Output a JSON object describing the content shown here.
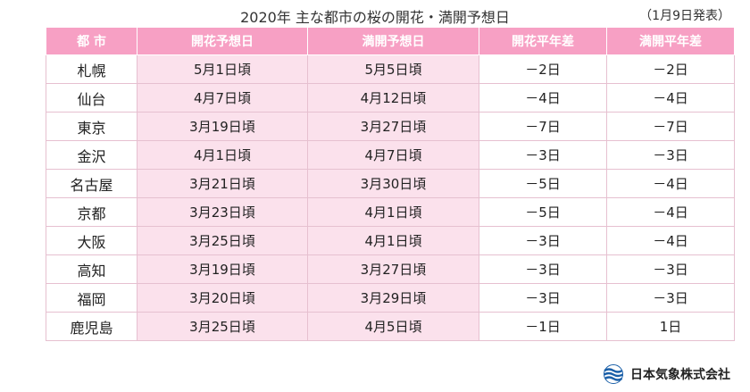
{
  "header": {
    "title": "2020年 主な都市の桜の開花・満開予想日",
    "announcement": "（1月9日発表）"
  },
  "table": {
    "columns": [
      "都 市",
      "開花予想日",
      "満開予想日",
      "開花平年差",
      "満開平年差"
    ],
    "rows": [
      {
        "city": "札幌",
        "bloom": "5月1日頃",
        "full": "5月5日頃",
        "bloom_diff": "－2日",
        "full_diff": "－2日"
      },
      {
        "city": "仙台",
        "bloom": "4月7日頃",
        "full": "4月12日頃",
        "bloom_diff": "－4日",
        "full_diff": "－4日"
      },
      {
        "city": "東京",
        "bloom": "3月19日頃",
        "full": "3月27日頃",
        "bloom_diff": "－7日",
        "full_diff": "－7日"
      },
      {
        "city": "金沢",
        "bloom": "4月1日頃",
        "full": "4月7日頃",
        "bloom_diff": "－3日",
        "full_diff": "－3日"
      },
      {
        "city": "名古屋",
        "bloom": "3月21日頃",
        "full": "3月30日頃",
        "bloom_diff": "－5日",
        "full_diff": "－4日"
      },
      {
        "city": "京都",
        "bloom": "3月23日頃",
        "full": "4月1日頃",
        "bloom_diff": "－5日",
        "full_diff": "－4日"
      },
      {
        "city": "大阪",
        "bloom": "3月25日頃",
        "full": "4月1日頃",
        "bloom_diff": "－3日",
        "full_diff": "－4日"
      },
      {
        "city": "高知",
        "bloom": "3月19日頃",
        "full": "3月27日頃",
        "bloom_diff": "－3日",
        "full_diff": "－3日"
      },
      {
        "city": "福岡",
        "bloom": "3月20日頃",
        "full": "3月29日頃",
        "bloom_diff": "－3日",
        "full_diff": "－3日"
      },
      {
        "city": "鹿児島",
        "bloom": "3月25日頃",
        "full": "4月5日頃",
        "bloom_diff": "－1日",
        "full_diff": "1日"
      }
    ]
  },
  "footer": {
    "brand": "日本気象株式会社",
    "logo_icon": "wave-logo-icon"
  },
  "colors": {
    "header_pink": "#f7a0c4",
    "cell_pink": "#fbe1ec",
    "border": "#e6c0d0",
    "logo_blue": "#1a5fa8"
  }
}
